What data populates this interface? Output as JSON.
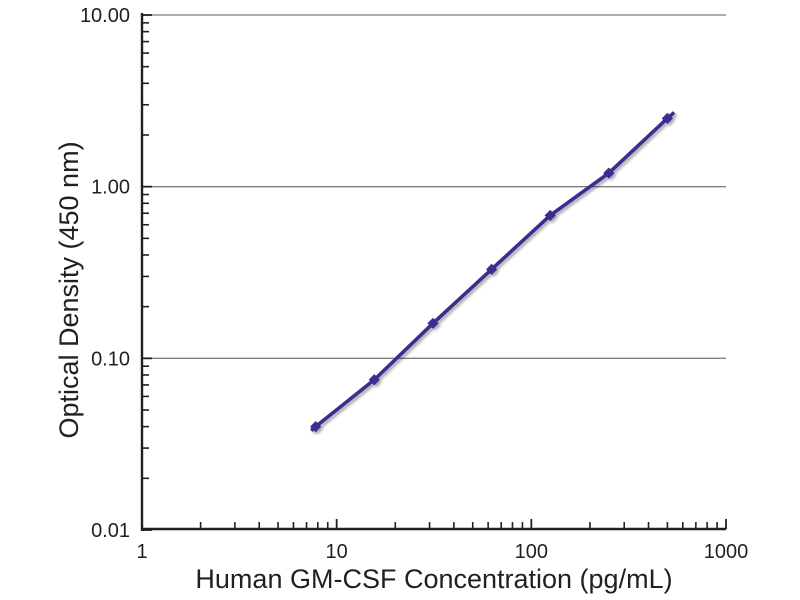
{
  "figure": {
    "background_color": "#ffffff",
    "description": "ELISA standard curve plot"
  },
  "chart_data": {
    "type": "line",
    "title": "",
    "xlabel": "Human GM-CSF Concentration (pg/mL)",
    "ylabel": "Optical Density (450 nm)",
    "x_scale": "log",
    "y_scale": "log",
    "xlim": [
      1,
      1000
    ],
    "ylim": [
      0.01,
      10
    ],
    "x_ticks": [
      1,
      10,
      100,
      1000
    ],
    "x_tick_labels": [
      "1",
      "10",
      "100",
      "1000"
    ],
    "y_ticks": [
      0.01,
      0.1,
      1,
      10
    ],
    "y_tick_labels": [
      "0.01",
      "0.10",
      "1.00",
      "10.00"
    ],
    "grid": "horizontal-major",
    "legend": "none",
    "series": [
      {
        "name": "Human GM-CSF standard curve",
        "x": [
          7.8,
          15.6,
          31.25,
          62.5,
          125,
          250,
          500
        ],
        "y": [
          0.04,
          0.075,
          0.16,
          0.33,
          0.68,
          1.2,
          2.5
        ],
        "marker": "diamond",
        "line": "solid"
      }
    ]
  },
  "colors": {
    "series_line": "#3b2d8f",
    "marker_fill": "#3b2d8f",
    "axis": "#231f20",
    "gridline": "#7f7f7f",
    "text": "#231f20",
    "background": "#ffffff"
  }
}
